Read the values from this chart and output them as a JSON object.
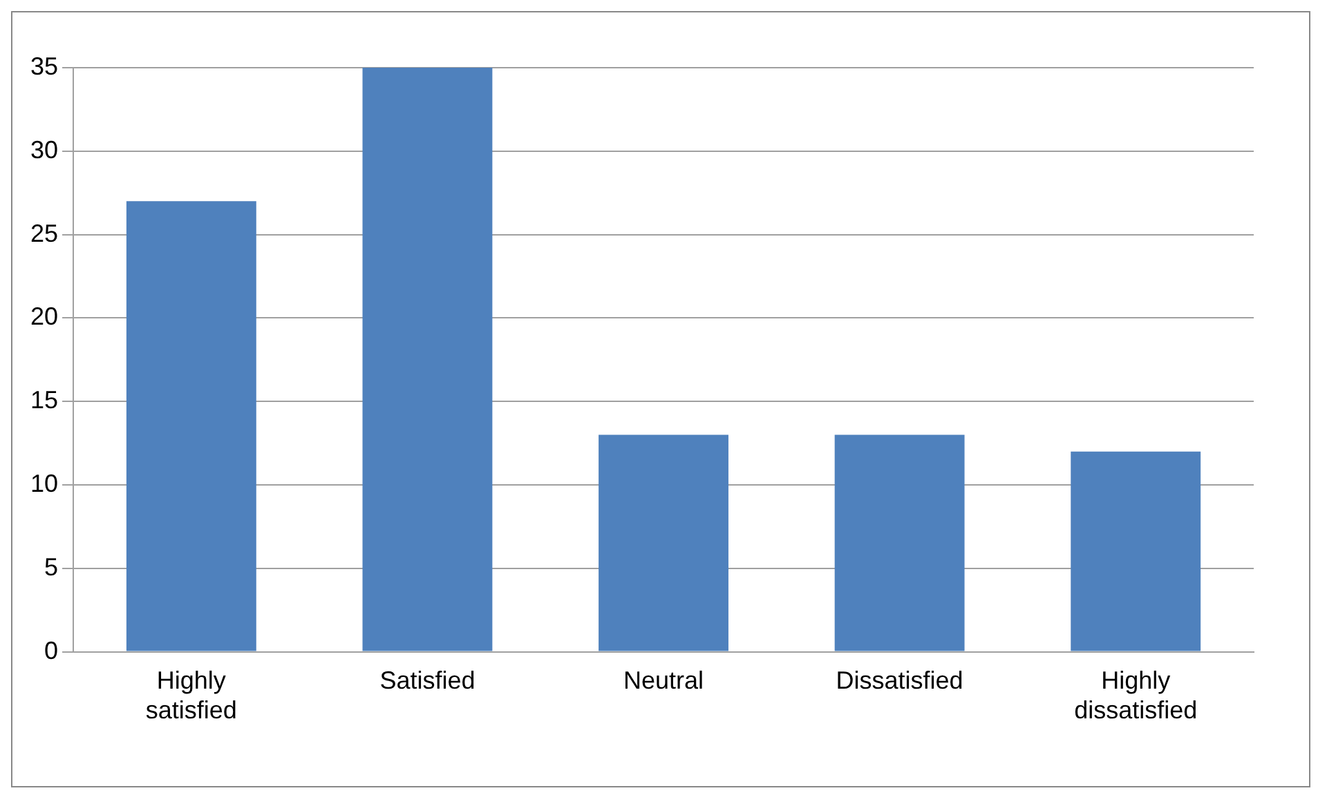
{
  "chart_data": {
    "type": "bar",
    "categories": [
      "Highly satisfied",
      "Satisfied",
      "Neutral",
      "Dissatisfied",
      "Highly dissatisfied"
    ],
    "values": [
      27,
      35,
      13,
      13,
      12
    ],
    "color": "#4f81bd",
    "ylim": [
      0,
      35
    ],
    "yticks": [
      0,
      5,
      10,
      15,
      20,
      25,
      30,
      35
    ],
    "grid": "y",
    "legend": false
  }
}
